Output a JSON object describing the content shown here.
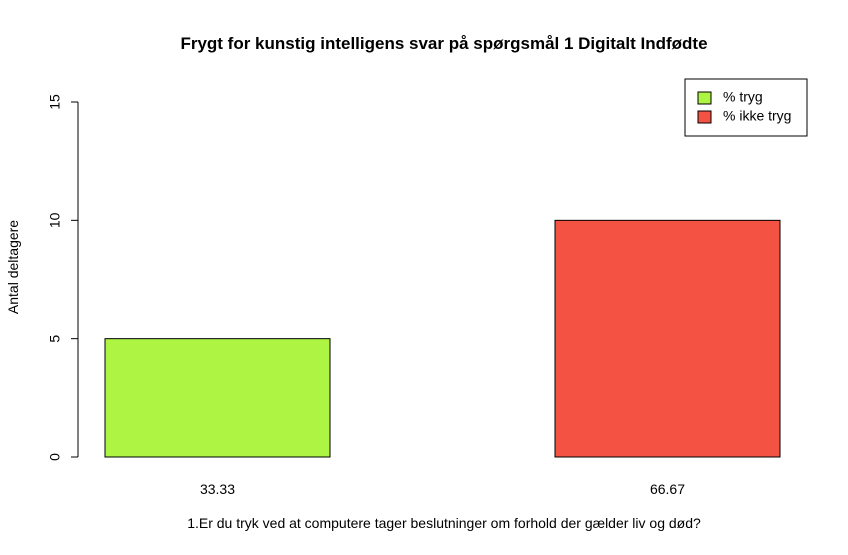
{
  "chart_data": {
    "type": "bar",
    "title": "Frygt for kunstig intelligens svar på spørgsmål 1 Digitalt Indfødte",
    "xlabel": "1.Er du tryk ved at computere tager beslutninger om forhold der gælder liv og død?",
    "ylabel": "Antal deltagere",
    "categories": [
      "33.33",
      "66.67"
    ],
    "values": [
      5,
      10
    ],
    "colors": [
      "#adf542",
      "#f45242"
    ],
    "ylim": [
      0,
      15
    ],
    "yticks": [
      0,
      5,
      10,
      15
    ],
    "legend": {
      "position": "top-right",
      "entries": [
        {
          "label": "% tryg",
          "color": "#adf542"
        },
        {
          "label": "% ikke tryg",
          "color": "#f45242"
        }
      ]
    },
    "grid": false
  }
}
